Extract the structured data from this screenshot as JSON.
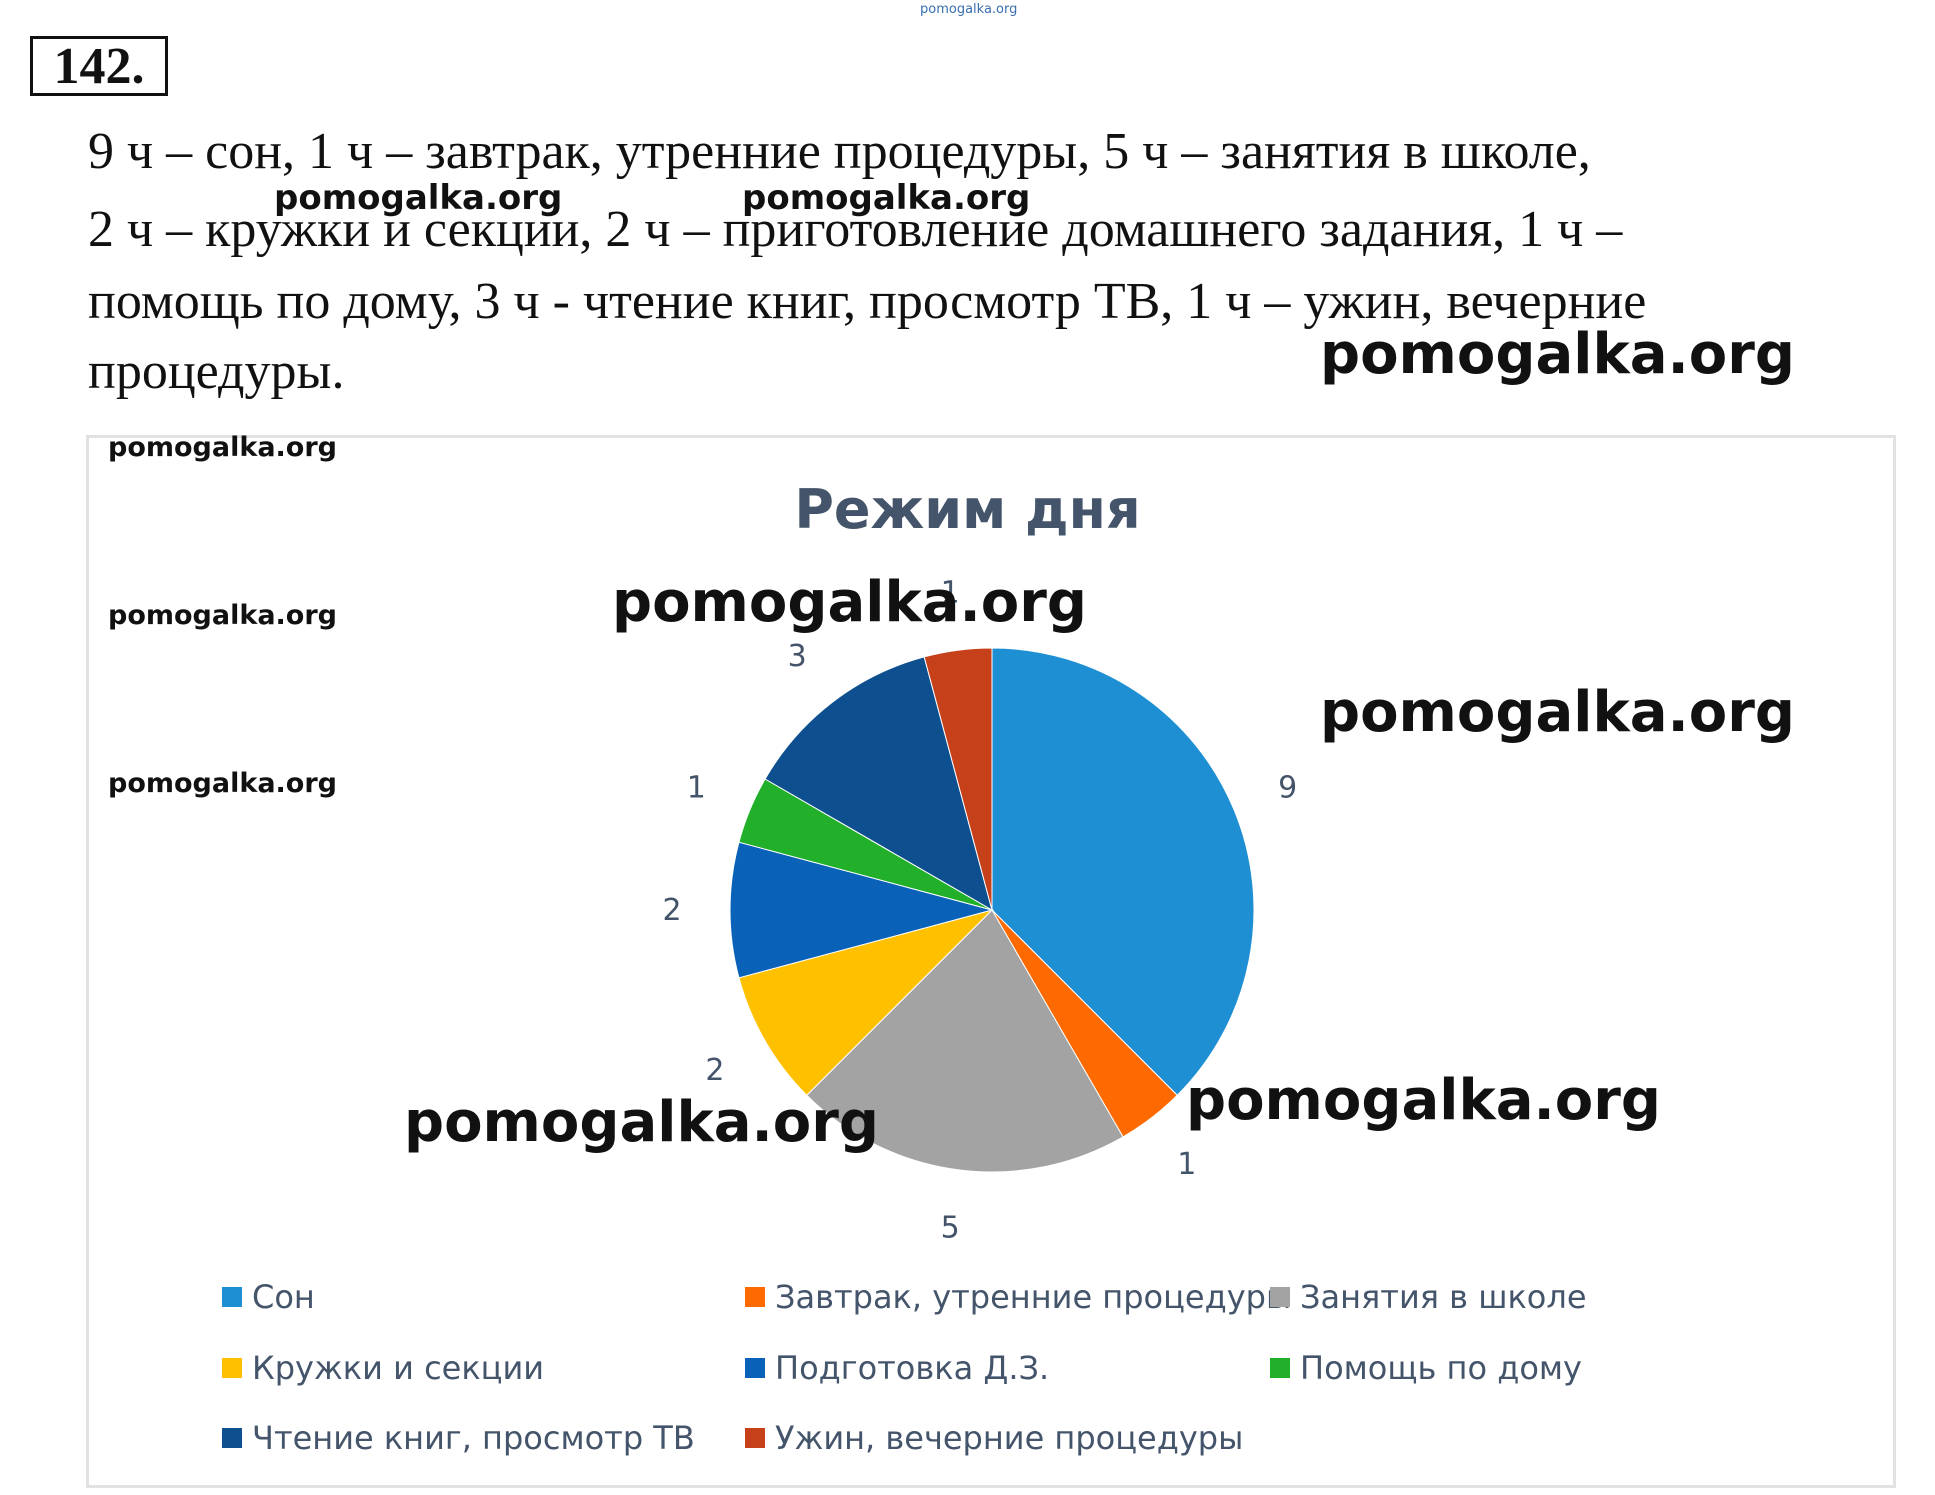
{
  "problem_number": "142.",
  "task_lines": [
    "9 ч – сон, 1 ч – завтрак, утренние процедуры, 5 ч – занятия в школе,",
    " 2 ч – кружки и секции, 2 ч – приготовление домашнего задания, 1 ч –",
    "помощь по дому, 3 ч - чтение книг, просмотр ТВ, 1 ч – ужин, вечерние",
    "процедуры."
  ],
  "watermark": "pomogalka.org",
  "colors": {
    "son": "#1f8fd4",
    "breakfast": "#ff6a00",
    "school": "#a3a3a3",
    "clubs": "#ffc000",
    "homework": "#0a62b8",
    "housework": "#22b02a",
    "reading": "#0d4f8f",
    "dinner": "#c6401a"
  },
  "chart_data": {
    "type": "pie",
    "title": "Режим дня",
    "categories": [
      "Сон",
      "Завтрак, утренние процедуры",
      "Занятия в школе",
      "Кружки и секции",
      "Подготовка Д.З.",
      "Помощь по дому",
      "Чтение книг, просмотр ТВ",
      "Ужин, вечерние процедуры"
    ],
    "values": [
      9,
      1,
      5,
      2,
      2,
      1,
      3,
      1
    ],
    "data_labels": [
      "9",
      "1",
      "5",
      "2",
      "2",
      "1",
      "3",
      "1"
    ],
    "legend_position": "bottom"
  }
}
